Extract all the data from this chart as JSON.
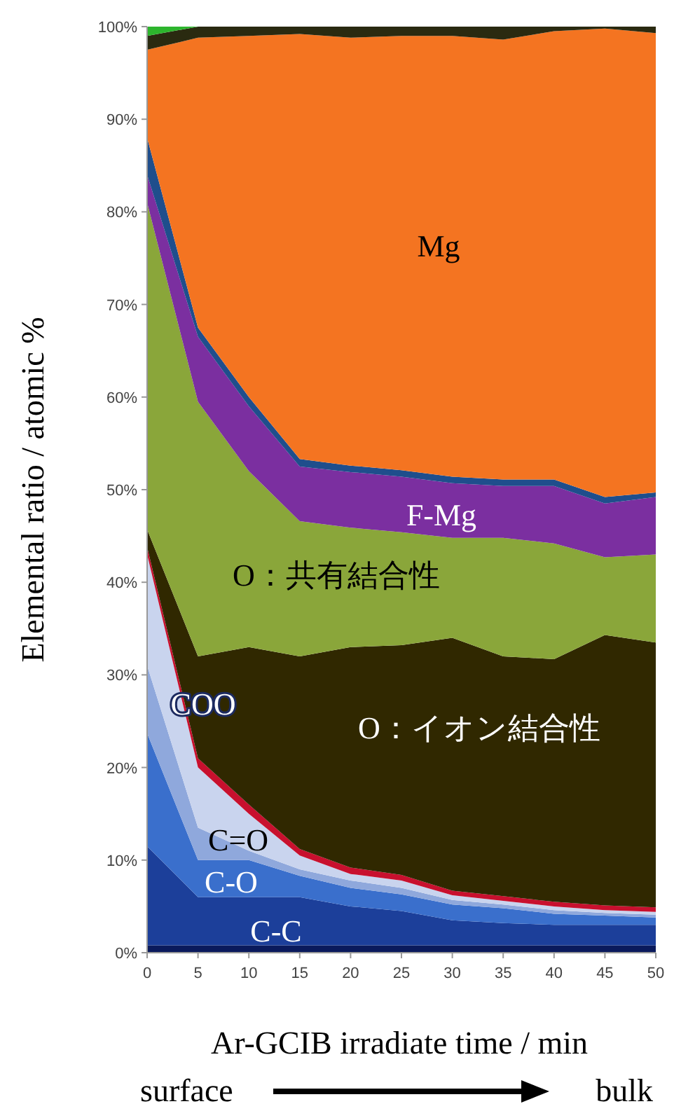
{
  "chart_data": {
    "type": "area",
    "stacked": true,
    "xlabel": "Ar-GCIB irradiate time / min",
    "ylabel": "Elemental ratio / atomic %",
    "x": [
      0,
      5,
      10,
      15,
      20,
      25,
      30,
      35,
      40,
      45,
      50
    ],
    "xlim": [
      0,
      50
    ],
    "xticks": [
      0,
      5,
      10,
      15,
      20,
      25,
      30,
      35,
      40,
      45,
      50
    ],
    "ylim": [
      0,
      100
    ],
    "yticks": [
      {
        "value": 0,
        "label": "0%"
      },
      {
        "value": 10,
        "label": "10%"
      },
      {
        "value": 20,
        "label": "20%"
      },
      {
        "value": 30,
        "label": "30%"
      },
      {
        "value": 40,
        "label": "40%"
      },
      {
        "value": 50,
        "label": "50%"
      },
      {
        "value": 60,
        "label": "60%"
      },
      {
        "value": 70,
        "label": "70%"
      },
      {
        "value": 80,
        "label": "80%"
      },
      {
        "value": 90,
        "label": "90%"
      },
      {
        "value": 100,
        "label": "100%"
      }
    ],
    "grid": false,
    "series": [
      {
        "color": "#0a1a5c",
        "values": [
          0.8,
          0.8,
          0.8,
          0.8,
          0.8,
          0.8,
          0.8,
          0.8,
          0.8,
          0.8,
          0.8
        ]
      },
      {
        "name": "C-C",
        "color": "#1c3f9a",
        "values": [
          10.7,
          5.2,
          5.2,
          5.2,
          4.2,
          3.7,
          2.7,
          2.4,
          2.2,
          2.2,
          2.2
        ]
      },
      {
        "name": "C-O",
        "color": "#3a6fcc",
        "values": [
          12.2,
          4,
          4,
          2.3,
          2,
          1.8,
          1.7,
          1.6,
          1.2,
          1,
          0.8
        ]
      },
      {
        "name": "C=O",
        "color": "#8fa8dc",
        "values": [
          7.3,
          3.5,
          1,
          0.7,
          0.8,
          0.7,
          0.5,
          0.4,
          0.4,
          0.3,
          0.3
        ]
      },
      {
        "name": "COO",
        "color": "#c9d4ee",
        "values": [
          12,
          6.5,
          4,
          1.5,
          0.7,
          0.8,
          0.5,
          0.4,
          0.4,
          0.3,
          0.3
        ]
      },
      {
        "color": "#c8102e",
        "values": [
          0.8,
          1,
          1,
          0.7,
          0.7,
          0.6,
          0.5,
          0.5,
          0.5,
          0.5,
          0.5
        ]
      },
      {
        "name": "O：イオン結合性",
        "color": "#302800",
        "values": [
          1.9,
          11,
          17,
          20.8,
          23.8,
          24.8,
          27.3,
          25.9,
          26.2,
          29.2,
          28.6
        ]
      },
      {
        "name": "O：共有結合性",
        "color": "#8aa63a",
        "values": [
          35.3,
          27.5,
          19,
          14.6,
          12.9,
          12.2,
          10.8,
          12.8,
          12.5,
          8.4,
          9.5
        ]
      },
      {
        "name": "F-Mg",
        "color": "#7b2fa0",
        "values": [
          3,
          7,
          7,
          5.9,
          6,
          6,
          5.9,
          5.6,
          6.2,
          5.8,
          6.2
        ]
      },
      {
        "color": "#1f4e8c",
        "values": [
          4,
          1,
          1,
          0.8,
          0.7,
          0.7,
          0.7,
          0.7,
          0.7,
          0.7,
          0.5
        ]
      },
      {
        "name": "Mg",
        "color": "#f47421",
        "values": [
          9.5,
          31.3,
          39,
          45.9,
          46.2,
          46.9,
          47.6,
          47.5,
          48.4,
          50.6,
          49.6
        ]
      },
      {
        "color": "#2a2a10",
        "values": [
          1.5,
          1.2,
          1,
          0.8,
          1.2,
          1,
          1,
          1.4,
          0.5,
          0.2,
          0.7
        ]
      },
      {
        "color": "#2db52d",
        "values": [
          1,
          0,
          0,
          0,
          0,
          0,
          0,
          0,
          0,
          0,
          0
        ]
      }
    ],
    "annotations": [
      "surface",
      "bulk"
    ]
  }
}
